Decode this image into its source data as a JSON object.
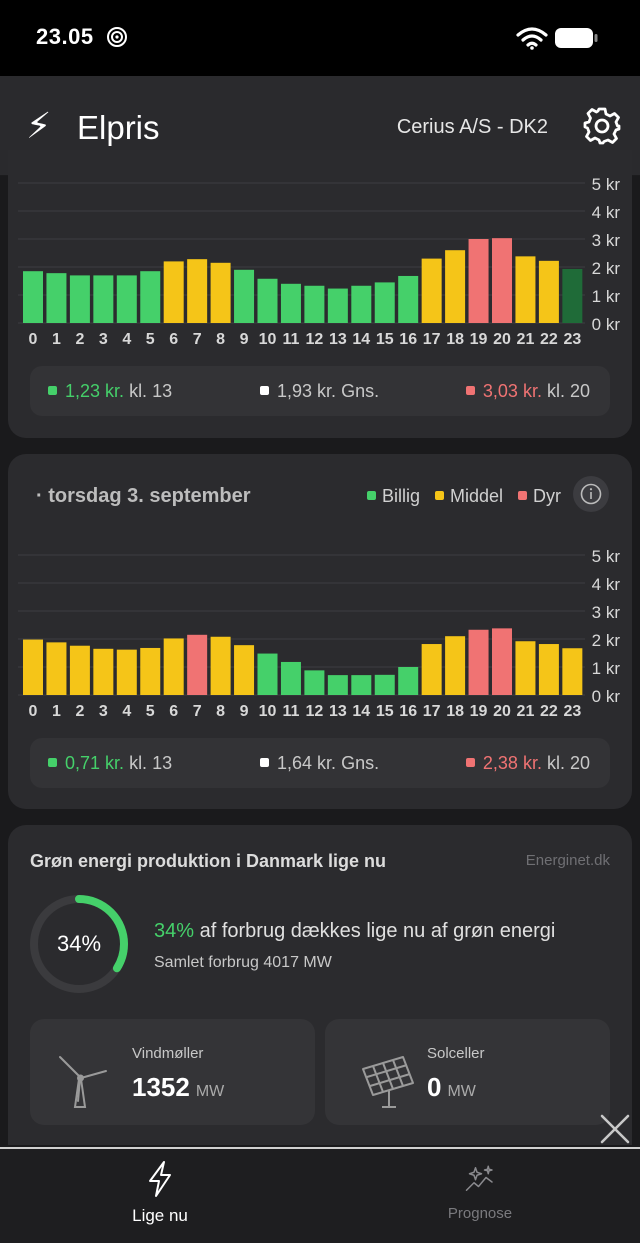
{
  "status_bar": {
    "time": "23.05"
  },
  "header": {
    "logo": "⚡",
    "title": "Elpris",
    "region": "Cerius A/S - DK2"
  },
  "colors": {
    "cheap": "#45d06a",
    "medium": "#f5c518",
    "expensive": "#f07373",
    "current": "#1f6b38"
  },
  "chart_data": [
    {
      "type": "bar",
      "categories": [
        "0",
        "1",
        "2",
        "3",
        "4",
        "5",
        "6",
        "7",
        "8",
        "9",
        "10",
        "11",
        "12",
        "13",
        "14",
        "15",
        "16",
        "17",
        "18",
        "19",
        "20",
        "21",
        "22",
        "23"
      ],
      "values": [
        1.85,
        1.78,
        1.7,
        1.7,
        1.7,
        1.85,
        2.2,
        2.28,
        2.15,
        1.9,
        1.58,
        1.4,
        1.33,
        1.23,
        1.33,
        1.45,
        1.68,
        2.3,
        2.6,
        3.0,
        3.03,
        2.38,
        2.22,
        1.93
      ],
      "levels": [
        "cheap",
        "cheap",
        "cheap",
        "cheap",
        "cheap",
        "cheap",
        "medium",
        "medium",
        "medium",
        "cheap",
        "cheap",
        "cheap",
        "cheap",
        "cheap",
        "cheap",
        "cheap",
        "cheap",
        "medium",
        "medium",
        "expensive",
        "expensive",
        "medium",
        "medium",
        "current"
      ],
      "y_ticks": [
        "0 kr",
        "1 kr",
        "2 kr",
        "3 kr",
        "4 kr",
        "5 kr"
      ],
      "ylim": [
        0,
        5
      ],
      "grid": true
    },
    {
      "type": "bar",
      "categories": [
        "0",
        "1",
        "2",
        "3",
        "4",
        "5",
        "6",
        "7",
        "8",
        "9",
        "10",
        "11",
        "12",
        "13",
        "14",
        "15",
        "16",
        "17",
        "18",
        "19",
        "20",
        "21",
        "22",
        "23"
      ],
      "values": [
        1.98,
        1.88,
        1.76,
        1.65,
        1.62,
        1.68,
        2.02,
        2.15,
        2.08,
        1.78,
        1.48,
        1.18,
        0.88,
        0.71,
        0.71,
        0.72,
        1.0,
        1.82,
        2.1,
        2.33,
        2.38,
        1.92,
        1.82,
        1.67
      ],
      "levels": [
        "medium",
        "medium",
        "medium",
        "medium",
        "medium",
        "medium",
        "medium",
        "expensive",
        "medium",
        "medium",
        "cheap",
        "cheap",
        "cheap",
        "cheap",
        "cheap",
        "cheap",
        "cheap",
        "medium",
        "medium",
        "expensive",
        "expensive",
        "medium",
        "medium",
        "medium"
      ],
      "y_ticks": [
        "0 kr",
        "1 kr",
        "2 kr",
        "3 kr",
        "4 kr",
        "5 kr"
      ],
      "ylim": [
        0,
        5
      ],
      "grid": true
    }
  ],
  "today_summary": {
    "min_value": "1,23 kr.",
    "min_label": "kl. 13",
    "avg_value": "1,93 kr.",
    "avg_label": "Gns.",
    "max_value": "3,03 kr.",
    "max_label": "kl. 20"
  },
  "tomorrow": {
    "date_title": "· torsdag 3. september",
    "legend": {
      "cheap": "Billig",
      "medium": "Middel",
      "expensive": "Dyr"
    },
    "summary": {
      "min_value": "0,71 kr.",
      "min_label": "kl. 13",
      "avg_value": "1,64 kr.",
      "avg_label": "Gns.",
      "max_value": "2,38 kr.",
      "max_label": "kl. 20"
    }
  },
  "green_energy": {
    "title": "Grøn energi produktion i Danmark lige nu",
    "source": "Energinet.dk",
    "percent": 34,
    "percent_label": "34%",
    "percent_text": "34%",
    "description": "af forbrug dækkes lige nu af grøn energi",
    "consumption": "Samlet forbrug 4017 MW",
    "wind": {
      "label": "Vindmøller",
      "value": "1352",
      "unit": "MW",
      "icon": "wind-turbine-icon"
    },
    "solar": {
      "label": "Solceller",
      "value": "0",
      "unit": "MW",
      "icon": "solar-panel-icon"
    }
  },
  "tabs": [
    {
      "label": "Lige nu",
      "icon": "lightning-icon",
      "active": true
    },
    {
      "label": "Prognose",
      "icon": "sparkle-chart-icon",
      "active": false
    }
  ]
}
